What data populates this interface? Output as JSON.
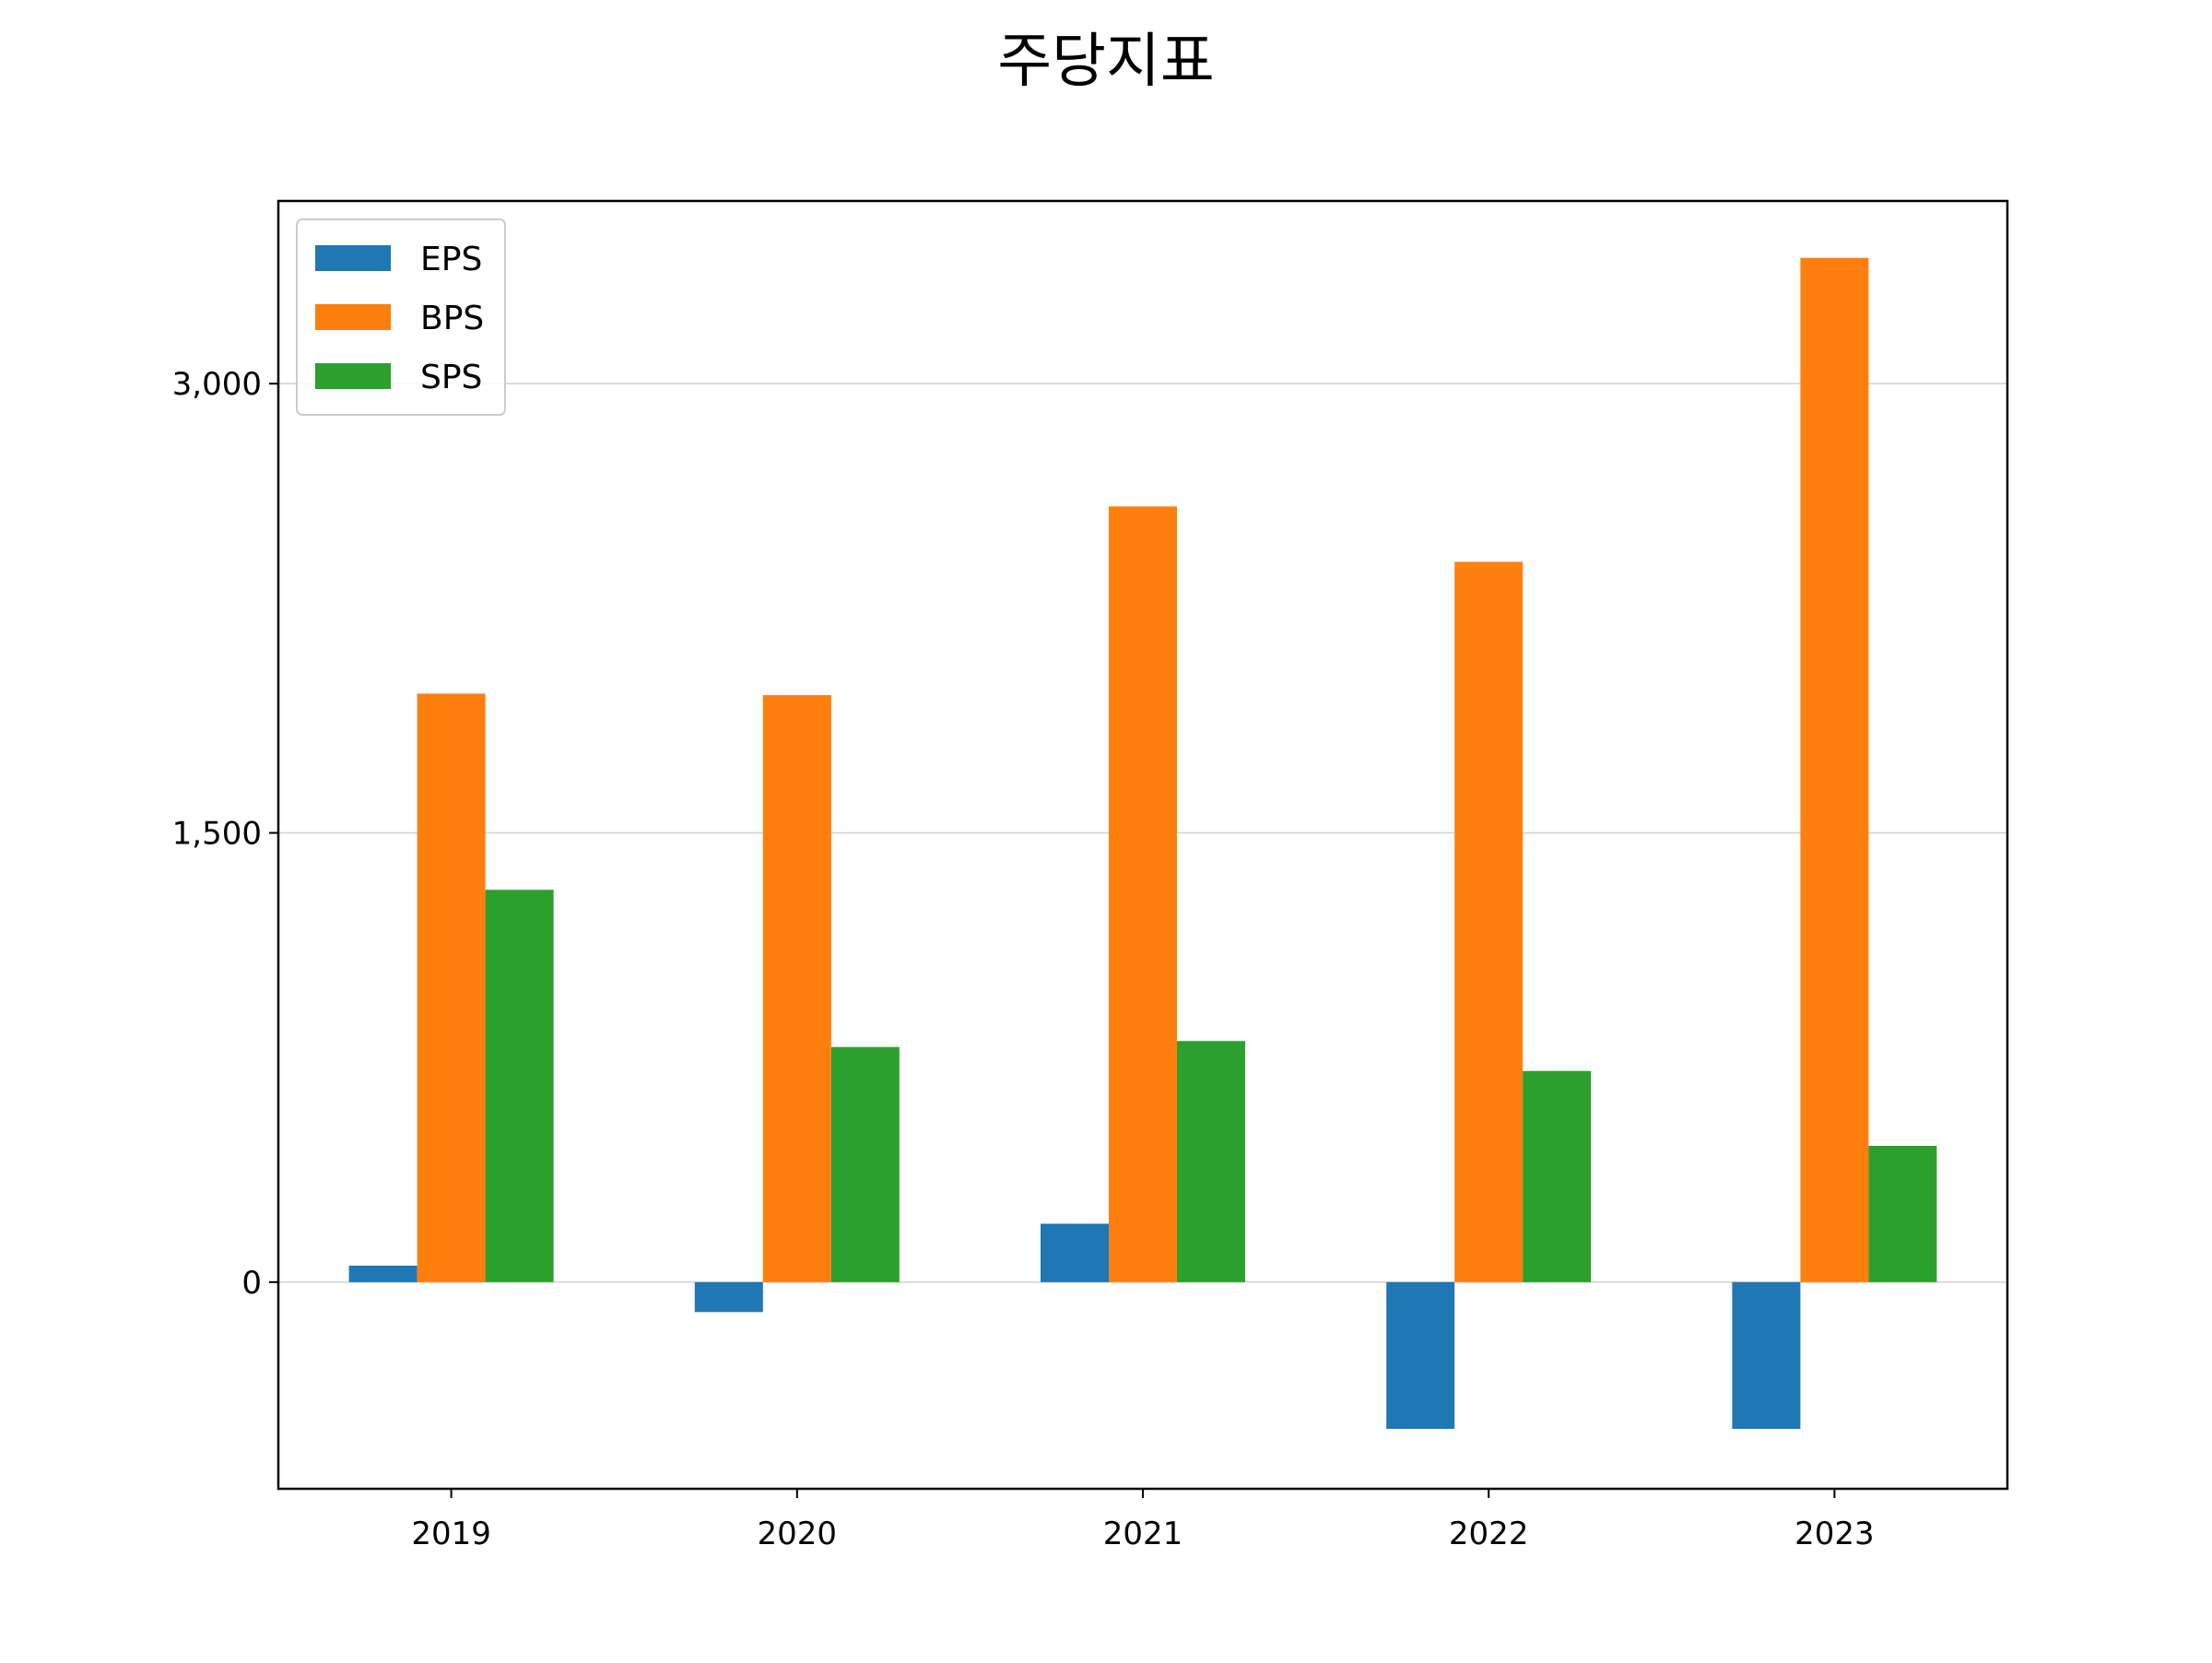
{
  "chart_data": {
    "type": "bar",
    "title": "주당지표",
    "xlabel": "",
    "ylabel": "",
    "categories": [
      "2019",
      "2020",
      "2021",
      "2022",
      "2023"
    ],
    "series": [
      {
        "name": "EPS",
        "color": "#1f77b4",
        "values": [
          55,
          -100,
          195,
          -490,
          -490
        ]
      },
      {
        "name": "BPS",
        "color": "#ff7f0e",
        "values": [
          1965,
          1960,
          2590,
          2405,
          3420
        ]
      },
      {
        "name": "SPS",
        "color": "#2ca02c",
        "values": [
          1310,
          785,
          805,
          705,
          455
        ]
      }
    ],
    "ylim": [
      -690,
      3610
    ],
    "yticks": [
      0,
      1500,
      3000
    ],
    "ytick_labels": [
      "0",
      "1,500",
      "3,000"
    ],
    "grid": "horizontal",
    "legend": "top-left"
  }
}
